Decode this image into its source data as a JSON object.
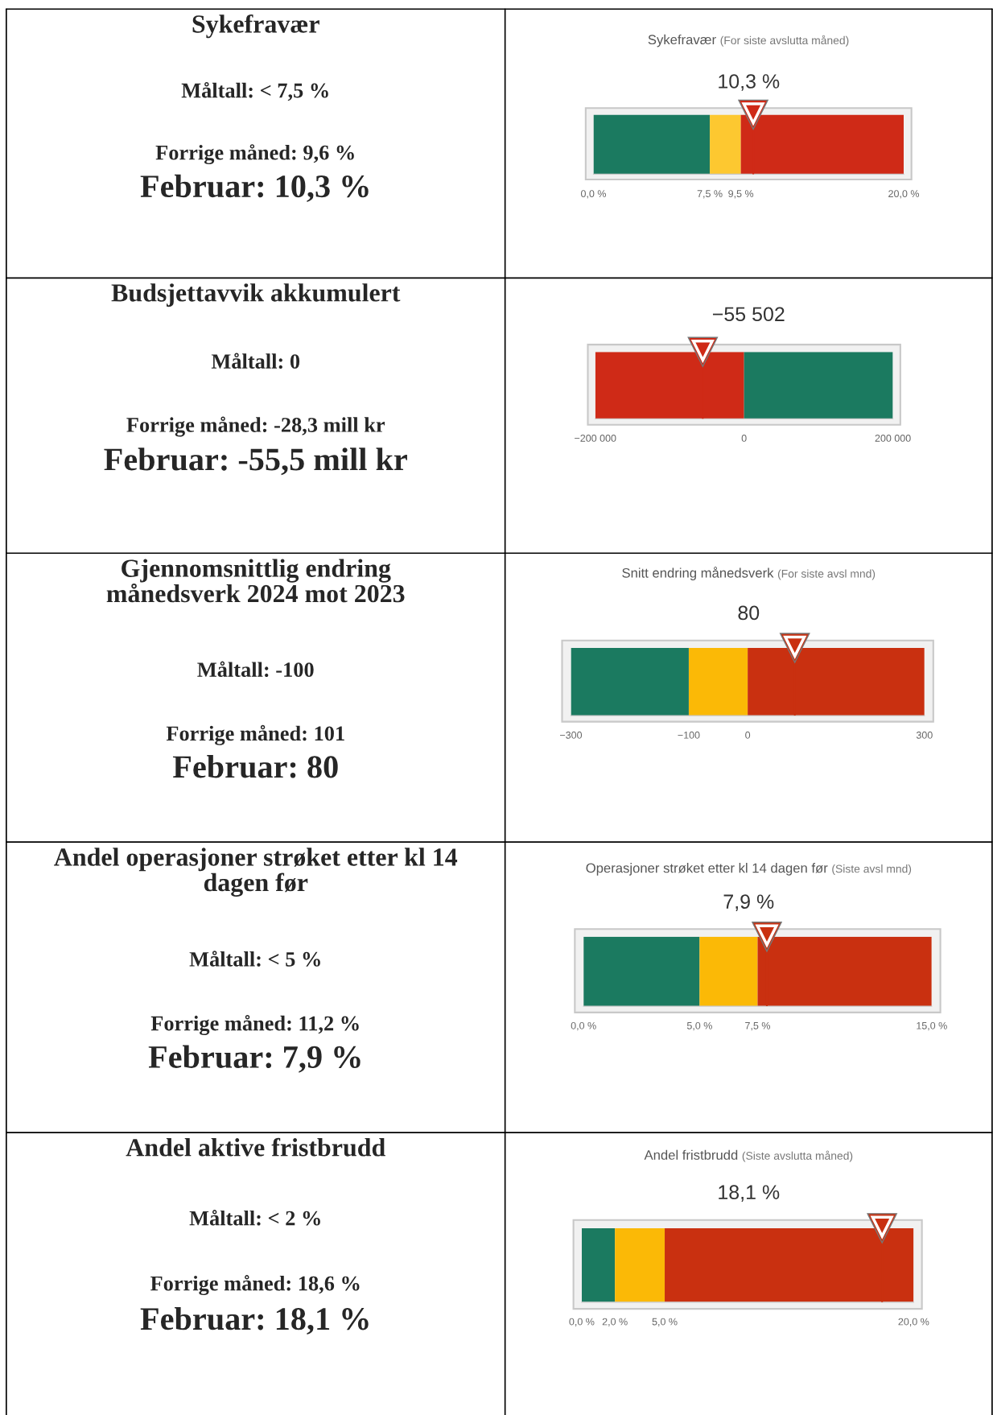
{
  "chart_data": [
    {
      "type": "other",
      "title": "Sykefravær",
      "annotations": [
        "Måltall: < 7,5 %",
        "Forrige måned: 9,6 %",
        "Februar: 10,3 %"
      ]
    },
    {
      "type": "bar",
      "orientation": "horizontal",
      "stacked": true,
      "title": "Sykefravær",
      "subtitle": "(For siste avslutta måned)",
      "categories": [
        null
      ],
      "xlim": [
        0,
        20
      ],
      "xticks": [
        {
          "value": 0,
          "label": "0,0 %"
        },
        {
          "value": 7.5,
          "label": "7,5 %"
        },
        {
          "value": 9.5,
          "label": "9,5 %"
        },
        {
          "value": 20,
          "label": "20,0 %"
        }
      ],
      "series": [
        {
          "color": "#1b7a60",
          "values": [
            7.5
          ]
        },
        {
          "color": "#fdc830",
          "values": [
            2
          ]
        },
        {
          "color": "#cf2a17",
          "values": [
            10.5
          ]
        }
      ],
      "ref_lines": [
        {
          "axis": "x",
          "value": 10.3,
          "color": "#cf2a17"
        }
      ],
      "annotations": [
        "10,3 %"
      ]
    },
    {
      "type": "other",
      "title": "Budsjettavvik akkumulert",
      "annotations": [
        "Måltall: 0",
        "Forrige måned: -28,3 mill kr",
        "Februar: -55,5 mill kr"
      ]
    },
    {
      "type": "bar",
      "orientation": "horizontal",
      "stacked": true,
      "categories": [
        null
      ],
      "xlim": [
        -200000,
        200000
      ],
      "xticks": [
        {
          "value": -200000,
          "label": "−200 000"
        },
        {
          "value": 0,
          "label": "0"
        },
        {
          "value": 200000,
          "label": "200 000"
        }
      ],
      "series": [
        {
          "color": "#cf2a17",
          "values": [
            -200000
          ]
        },
        {
          "color": "#1b7a60",
          "values": [
            200000
          ]
        }
      ],
      "ref_lines": [
        {
          "axis": "x",
          "value": -55502,
          "color": "#cf2a17"
        }
      ],
      "annotations": [
        "−55 502"
      ]
    },
    {
      "type": "other",
      "title": "Gjennomsnittlig endring\nmånedsverk 2024 mot 2023",
      "annotations": [
        "Måltall: -100",
        "Forrige måned: 101",
        "Februar: 80"
      ]
    },
    {
      "type": "bar",
      "orientation": "horizontal",
      "stacked": true,
      "title": "Snitt endring månedsverk",
      "subtitle": "(For siste avsl mnd)",
      "categories": [
        null
      ],
      "xlim": [
        -300,
        300
      ],
      "xticks": [
        {
          "value": -300,
          "label": "−300"
        },
        {
          "value": -100,
          "label": "−100"
        },
        {
          "value": 0,
          "label": "0"
        },
        {
          "value": 300,
          "label": "300"
        }
      ],
      "series": [
        {
          "color": "#fbb906",
          "values": [
            -100
          ]
        },
        {
          "color": "#1b7a60",
          "values": [
            -200
          ]
        },
        {
          "color": "#c93010",
          "values": [
            300
          ]
        }
      ],
      "ref_lines": [
        {
          "axis": "x",
          "value": 80,
          "color": "#c93010"
        }
      ],
      "annotations": [
        "80"
      ]
    },
    {
      "type": "other",
      "title": "Andel operasjoner strøket etter kl 14\ndagen før",
      "annotations": [
        "Måltall: < 5 %",
        "Forrige måned: 11,2 %",
        "Februar: 7,9 %"
      ]
    },
    {
      "type": "bar",
      "orientation": "horizontal",
      "stacked": true,
      "title": "Operasjoner strøket etter kl 14 dagen før",
      "subtitle": "(Siste avsl mnd)",
      "categories": [
        null
      ],
      "xlim": [
        0,
        15
      ],
      "xticks": [
        {
          "value": 0,
          "label": "0,0 %"
        },
        {
          "value": 5,
          "label": "5,0 %"
        },
        {
          "value": 7.5,
          "label": "7,5 %"
        },
        {
          "value": 15,
          "label": "15,0 %"
        }
      ],
      "series": [
        {
          "color": "#1b7a60",
          "values": [
            5
          ]
        },
        {
          "color": "#fbb906",
          "values": [
            2.5
          ]
        },
        {
          "color": "#c93010",
          "values": [
            7.5
          ]
        }
      ],
      "ref_lines": [
        {
          "axis": "x",
          "value": 7.9,
          "color": "#c93010"
        }
      ],
      "annotations": [
        "7,9 %"
      ]
    },
    {
      "type": "other",
      "title": "Andel aktive fristbrudd",
      "annotations": [
        "Måltall: < 2 %",
        "Forrige måned: 18,6 %",
        "Februar: 18,1 %"
      ]
    },
    {
      "type": "bar",
      "orientation": "horizontal",
      "stacked": true,
      "title": "Andel fristbrudd",
      "subtitle": "(Siste avslutta måned)",
      "categories": [
        null
      ],
      "xlim": [
        0,
        20
      ],
      "xticks": [
        {
          "value": 0,
          "label": "0,0 %"
        },
        {
          "value": 2,
          "label": "2,0 %"
        },
        {
          "value": 5,
          "label": "5,0 %"
        },
        {
          "value": 20,
          "label": "20,0 %"
        }
      ],
      "series": [
        {
          "color": "#1b7a60",
          "values": [
            2
          ]
        },
        {
          "color": "#fbb906",
          "values": [
            3
          ]
        },
        {
          "color": "#c93010",
          "values": [
            15
          ]
        }
      ],
      "ref_lines": [
        {
          "axis": "x",
          "value": 18.1,
          "color": "#c93010"
        }
      ],
      "annotations": [
        "18,1 %"
      ]
    }
  ]
}
